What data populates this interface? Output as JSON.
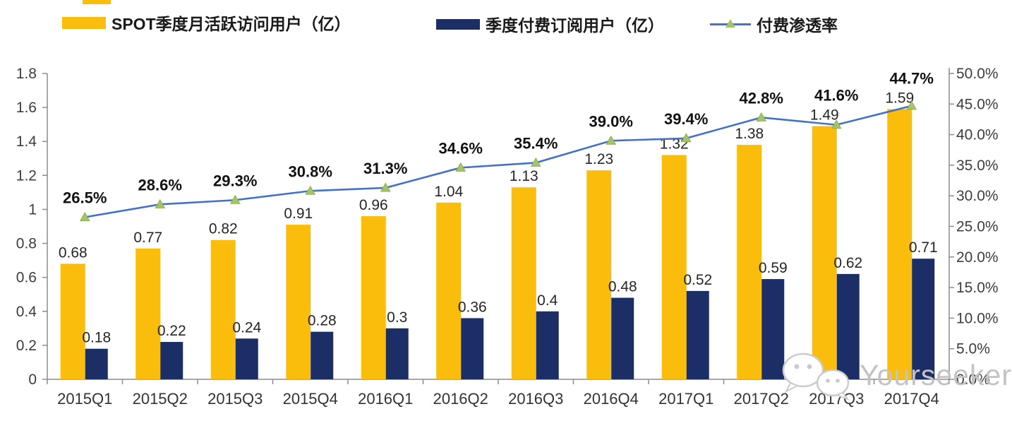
{
  "page": {
    "background": "#ffffff"
  },
  "legend": {
    "position": "top",
    "items": [
      {
        "id": "mau",
        "label": "SPOT季度月活跃访问用户（亿）",
        "type": "bar"
      },
      {
        "id": "sub",
        "label": "季度付费订阅用户（亿）",
        "type": "bar"
      },
      {
        "id": "penetration",
        "label": "付费渗透率",
        "type": "line"
      }
    ]
  },
  "colors": {
    "mau_bar": "#FBBD0B",
    "sub_bar": "#1B2F66",
    "penetration_line": "#4472C4",
    "penetration_marker": "#A5C46A",
    "penetration_marker_stroke": "#8DB04E",
    "axis": "#8c8c8c",
    "tick_label": "#3d3d3d",
    "value_label": "#262626",
    "pct_label": "#111111",
    "watermark": "#c3c3c3"
  },
  "chart_data": {
    "type": "combo (bar + line)",
    "categories": [
      "2015Q1",
      "2015Q2",
      "2015Q3",
      "2015Q4",
      "2016Q1",
      "2016Q2",
      "2016Q3",
      "2016Q4",
      "2017Q1",
      "2017Q2",
      "2017Q3",
      "2017Q4"
    ],
    "series": [
      {
        "name": "SPOT季度月活跃访问用户（亿）",
        "type": "bar",
        "axis": "left",
        "values": [
          0.68,
          0.77,
          0.82,
          0.91,
          0.96,
          1.04,
          1.13,
          1.23,
          1.32,
          1.38,
          1.49,
          1.59
        ],
        "labels": [
          "0.68",
          "0.77",
          "0.82",
          "0.91",
          "0.96",
          "1.04",
          "1.13",
          "1.23",
          "1.32",
          "1.38",
          "1.49",
          "1.59"
        ]
      },
      {
        "name": "季度付费订阅用户（亿）",
        "type": "bar",
        "axis": "left",
        "values": [
          0.18,
          0.22,
          0.24,
          0.28,
          0.3,
          0.36,
          0.4,
          0.48,
          0.52,
          0.59,
          0.62,
          0.71
        ],
        "labels": [
          "0.18",
          "0.22",
          "0.24",
          "0.28",
          "0.3",
          "0.36",
          "0.4",
          "0.48",
          "0.52",
          "0.59",
          "0.62",
          "0.71"
        ]
      },
      {
        "name": "付费渗透率",
        "type": "line",
        "axis": "right",
        "values": [
          26.5,
          28.6,
          29.3,
          30.8,
          31.3,
          34.6,
          35.4,
          39.0,
          39.4,
          42.8,
          41.6,
          44.7
        ],
        "labels": [
          "26.5%",
          "28.6%",
          "29.3%",
          "30.8%",
          "31.3%",
          "34.6%",
          "35.4%",
          "39.0%",
          "39.4%",
          "42.8%",
          "41.6%",
          "44.7%"
        ]
      }
    ],
    "left_axis": {
      "min": 0,
      "max": 1.8,
      "step": 0.2,
      "tick_labels": [
        "1.8",
        "1.6",
        "1.4",
        "1.2",
        "1",
        "0.8",
        "0.6",
        "0.4",
        "0.2",
        "0"
      ]
    },
    "right_axis": {
      "min": 0,
      "max": 50,
      "step": 5,
      "tick_labels": [
        "50.0%",
        "45.0%",
        "40.0%",
        "35.0%",
        "30.0%",
        "25.0%",
        "20.0%",
        "15.0%",
        "10.0%",
        "5.0%",
        "0.0%"
      ]
    },
    "grid": false,
    "legend_position": "top",
    "title": ""
  },
  "watermark": {
    "text": "Yourseeker",
    "icon": "wechat-icon"
  }
}
